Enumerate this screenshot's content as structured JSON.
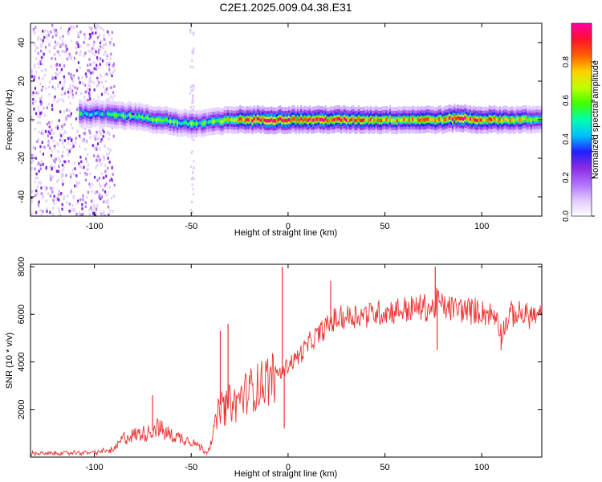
{
  "title": "C2E1.2025.009.04.38.E31",
  "chart_data": [
    {
      "type": "heatmap",
      "xlabel": "Height of straight line (km)",
      "ylabel": "Frequency (Hz)",
      "xlim": [
        -133,
        131
      ],
      "ylim": [
        -50,
        50
      ],
      "xticks": [
        -100,
        -50,
        0,
        50,
        100
      ],
      "yticks": [
        -40,
        -20,
        0,
        20,
        40
      ],
      "colorbar": {
        "label": "Normalized spectral amplitude",
        "range": [
          0,
          1
        ],
        "ticks": [
          0.0,
          0.2,
          0.4,
          0.6,
          0.8
        ],
        "colors": [
          "#ffffff",
          "#e0c8ff",
          "#b070ff",
          "#8a2be2",
          "#2020ff",
          "#00bfff",
          "#00ffb0",
          "#40ff00",
          "#c0ff00",
          "#ffd000",
          "#ff6000",
          "#ff1030",
          "#ff00a0"
        ]
      },
      "ridge": {
        "x": [
          -95,
          -90,
          -85,
          -80,
          -75,
          -70,
          -65,
          -60,
          -55,
          -50,
          -45,
          -40,
          -35,
          -30,
          -25,
          -20,
          -10,
          0,
          10,
          20,
          40,
          60,
          80,
          87,
          95,
          110,
          131
        ],
        "freq": [
          3,
          3,
          2,
          2,
          1,
          0,
          0,
          -1,
          -2,
          -2,
          -2,
          -1,
          -1,
          0,
          0,
          0,
          0,
          0,
          0,
          0,
          0,
          0,
          0,
          1,
          0,
          0,
          0
        ],
        "amplitude": [
          0.5,
          0.55,
          0.55,
          0.5,
          0.5,
          0.55,
          0.55,
          0.6,
          0.55,
          0.6,
          0.5,
          0.55,
          0.6,
          0.7,
          0.8,
          0.85,
          0.9,
          0.95,
          0.9,
          0.9,
          0.8,
          0.75,
          0.8,
          0.95,
          0.85,
          0.75,
          0.65
        ]
      },
      "noise_region_x": [
        -133,
        -90
      ]
    },
    {
      "type": "line",
      "xlabel": "Height of straight line (km)",
      "ylabel": "SNR (10 * v/v)",
      "xlim": [
        -133,
        131
      ],
      "ylim": [
        0,
        8100
      ],
      "xticks": [
        -100,
        -50,
        0,
        50,
        100
      ],
      "yticks": [
        2000,
        4000,
        6000,
        8000
      ],
      "color": "#ee3333",
      "x": [
        -133,
        -120,
        -110,
        -100,
        -95,
        -90,
        -88,
        -85,
        -80,
        -75,
        -70,
        -68,
        -65,
        -60,
        -55,
        -50,
        -45,
        -42,
        -40,
        -37,
        -35,
        -33,
        -30,
        -27,
        -25,
        -20,
        -15,
        -10,
        -5,
        -3,
        -2,
        0,
        5,
        10,
        15,
        20,
        25,
        30,
        40,
        50,
        60,
        70,
        75,
        77,
        80,
        90,
        100,
        108,
        110,
        115,
        120,
        131
      ],
      "y": [
        150,
        150,
        180,
        200,
        250,
        300,
        500,
        800,
        900,
        1000,
        1100,
        1300,
        1100,
        900,
        800,
        700,
        400,
        200,
        600,
        1500,
        2200,
        2000,
        2300,
        2200,
        2500,
        2800,
        3000,
        3300,
        3600,
        3500,
        3700,
        3900,
        4200,
        4700,
        5100,
        5500,
        5800,
        5900,
        6000,
        6100,
        6200,
        6300,
        6200,
        6600,
        6300,
        6200,
        6100,
        5900,
        5200,
        6000,
        6000,
        5900
      ],
      "spikes": [
        {
          "x": -70,
          "y": 2600
        },
        {
          "x": -35,
          "y": 5300
        },
        {
          "x": -31,
          "y": 5600
        },
        {
          "x": -3,
          "y": 8000
        },
        {
          "x": -2,
          "y": 1200
        },
        {
          "x": 22,
          "y": 7400
        },
        {
          "x": 76,
          "y": 8000
        },
        {
          "x": 77,
          "y": 4500
        },
        {
          "x": 110,
          "y": 4500
        }
      ]
    }
  ]
}
